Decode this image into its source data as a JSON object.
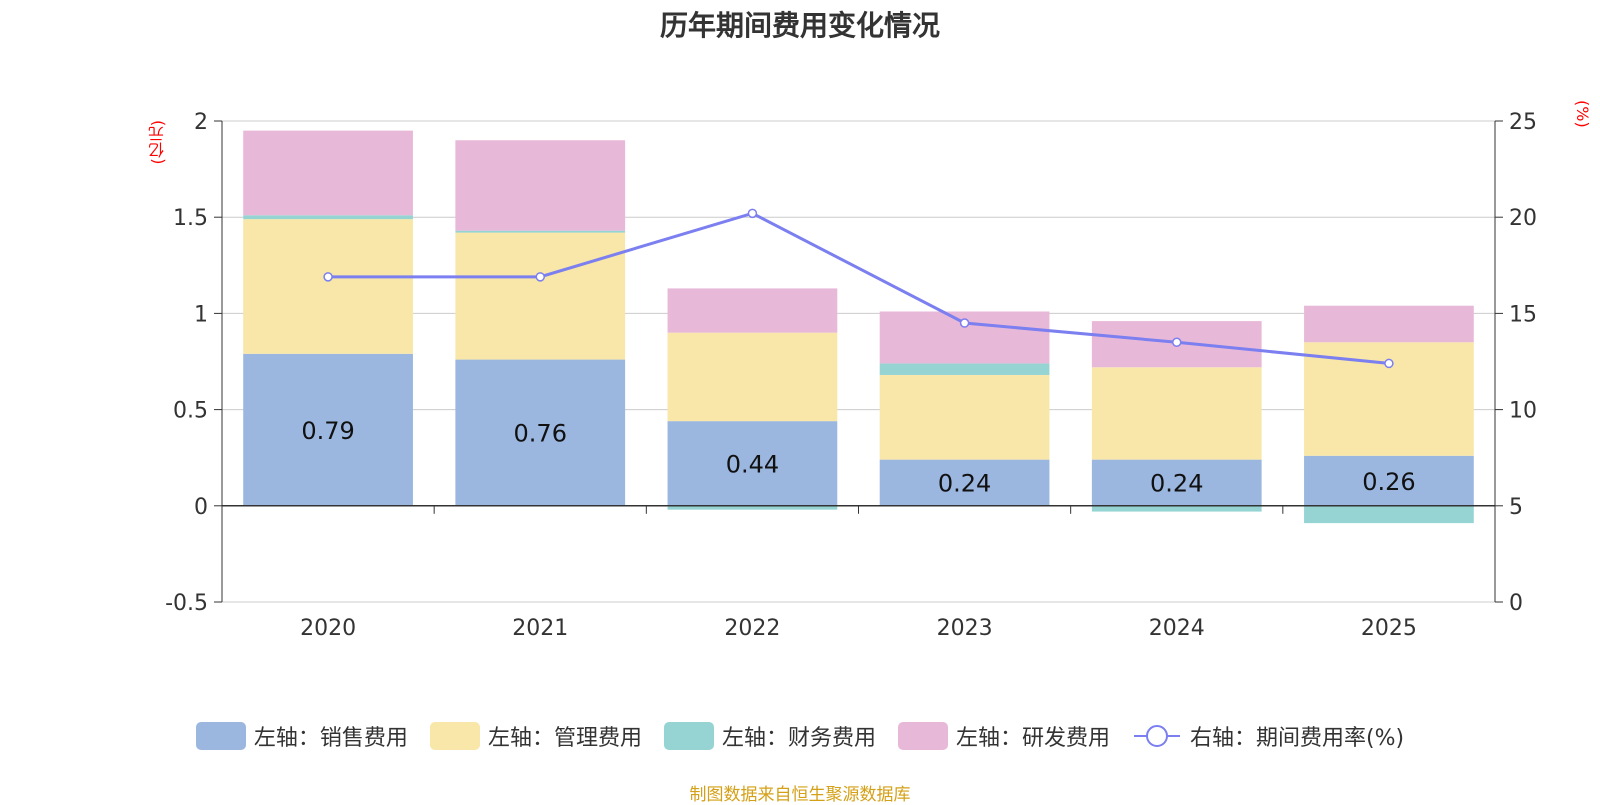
{
  "chart_data": {
    "type": "bar",
    "title": "历年期间费用变化情况",
    "categories": [
      "2020",
      "2021",
      "2022",
      "2023",
      "2024",
      "2025"
    ],
    "left_axis": {
      "unit": "(亿元)",
      "min": -0.5,
      "max": 2,
      "ticks": [
        "-0.5",
        "0",
        "0.5",
        "1",
        "1.5",
        "2"
      ]
    },
    "right_axis": {
      "unit": "(%)",
      "min": 0,
      "max": 25,
      "ticks": [
        "0",
        "5",
        "10",
        "15",
        "20",
        "25"
      ]
    },
    "series": [
      {
        "name": "左轴：销售费用",
        "type": "bar",
        "axis": "left",
        "color": "#9bb7e0",
        "values": [
          0.79,
          0.76,
          0.44,
          0.24,
          0.24,
          0.26
        ],
        "labels": [
          "0.79",
          "0.76",
          "0.44",
          "0.24",
          "0.24",
          "0.26"
        ]
      },
      {
        "name": "左轴：管理费用",
        "type": "bar",
        "axis": "left",
        "color": "#f8e7a8",
        "values": [
          0.7,
          0.66,
          0.46,
          0.44,
          0.48,
          0.59
        ]
      },
      {
        "name": "左轴：财务费用",
        "type": "bar",
        "axis": "left",
        "color": "#96d3d3",
        "values": [
          0.02,
          0.01,
          -0.02,
          0.06,
          -0.03,
          -0.09
        ]
      },
      {
        "name": "左轴：研发费用",
        "type": "bar",
        "axis": "left",
        "color": "#e8b8d9",
        "values": [
          0.44,
          0.47,
          0.23,
          0.27,
          0.24,
          0.19
        ]
      },
      {
        "name": "右轴：期间费用率(%)",
        "type": "line",
        "axis": "right",
        "color": "#7b7fef",
        "values": [
          16.9,
          16.9,
          20.2,
          14.5,
          13.5,
          12.4
        ]
      }
    ],
    "grid": true,
    "legend_position": "bottom"
  },
  "source": "制图数据来自恒生聚源数据库"
}
